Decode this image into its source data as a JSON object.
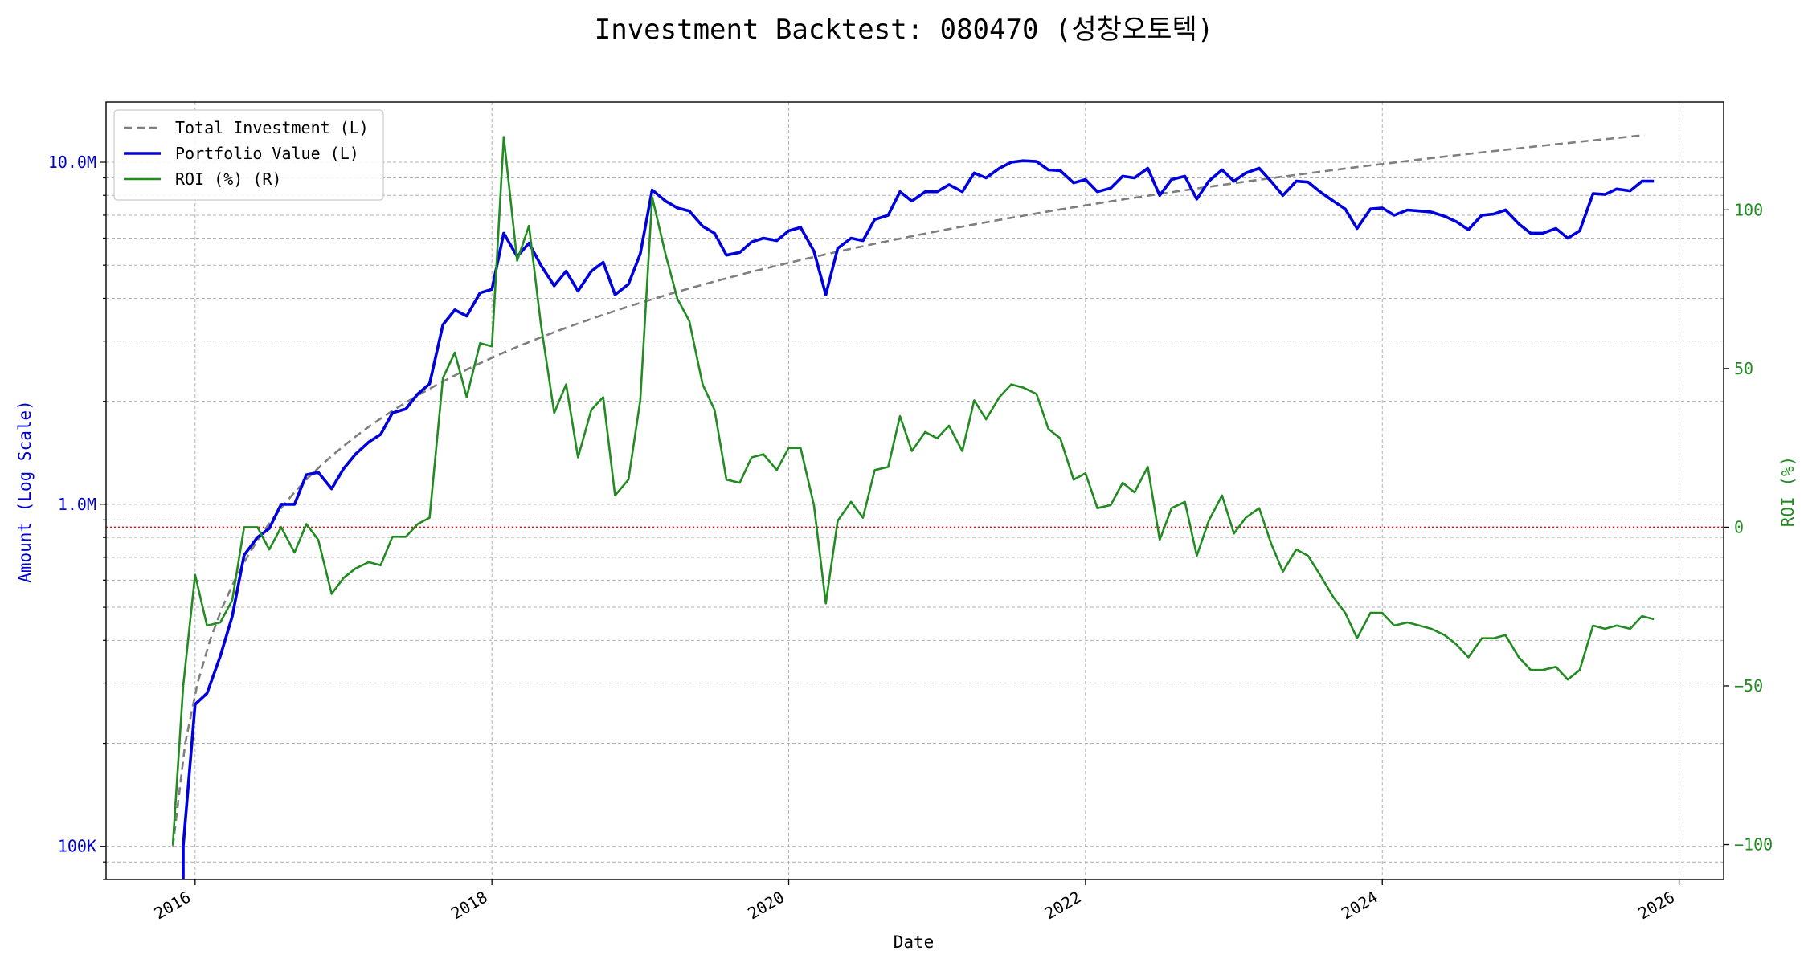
{
  "chart_data": {
    "type": "line",
    "title": "Investment Backtest: 080470 (성창오토텍)",
    "xlabel": "Date",
    "ylabel_left": "Amount (Log Scale)",
    "ylabel_right": "ROI (%)",
    "left_axis": {
      "scale": "log",
      "ylim": [
        80000,
        15000000
      ],
      "ticks": [
        100000,
        1000000,
        10000000
      ],
      "tick_labels": [
        "100K",
        "1.0M",
        "10.0M"
      ],
      "color": "#0000cc"
    },
    "right_axis": {
      "scale": "linear",
      "ylim": [
        -111,
        134
      ],
      "ticks": [
        -100,
        -50,
        0,
        50,
        100
      ],
      "tick_labels": [
        "−100",
        "−50",
        "0",
        "50",
        "100"
      ],
      "color": "#228b22"
    },
    "x_axis": {
      "xlim": [
        2015.4,
        2026.3
      ],
      "ticks": [
        2016,
        2018,
        2020,
        2022,
        2024,
        2026
      ],
      "tick_labels": [
        "2016",
        "2018",
        "2020",
        "2022",
        "2024",
        "2026"
      ]
    },
    "grid": true,
    "legend_position": "top-left",
    "reference_line": {
      "axis": "right",
      "value": 0,
      "color": "#ff0000",
      "style": "dotted"
    },
    "series": [
      {
        "name": "Total Investment (L)",
        "axis": "left",
        "color": "#7f7f7f",
        "style": "dashed",
        "monthly": {
          "start": 2015.85,
          "step": 0.083333,
          "base": 0,
          "increment": 100000,
          "count": 120
        }
      },
      {
        "name": "Portfolio Value (L)",
        "axis": "left",
        "color": "#0000dd",
        "style": "solid",
        "points": [
          [
            2015.92,
            40000
          ],
          [
            2015.92,
            100000
          ],
          [
            2016.0,
            260000
          ],
          [
            2016.08,
            280000
          ],
          [
            2016.17,
            360000
          ],
          [
            2016.25,
            470000
          ],
          [
            2016.33,
            710000
          ],
          [
            2016.42,
            800000
          ],
          [
            2016.5,
            850000
          ],
          [
            2016.58,
            1000000
          ],
          [
            2016.67,
            1000000
          ],
          [
            2016.75,
            1220000
          ],
          [
            2016.83,
            1240000
          ],
          [
            2016.92,
            1110000
          ],
          [
            2017.0,
            1270000
          ],
          [
            2017.08,
            1400000
          ],
          [
            2017.17,
            1520000
          ],
          [
            2017.25,
            1600000
          ],
          [
            2017.33,
            1850000
          ],
          [
            2017.42,
            1900000
          ],
          [
            2017.5,
            2100000
          ],
          [
            2017.58,
            2250000
          ],
          [
            2017.67,
            3350000
          ],
          [
            2017.75,
            3700000
          ],
          [
            2017.83,
            3550000
          ],
          [
            2017.92,
            4150000
          ],
          [
            2018.0,
            4250000
          ],
          [
            2018.08,
            6200000
          ],
          [
            2018.17,
            5300000
          ],
          [
            2018.25,
            5800000
          ],
          [
            2018.33,
            5000000
          ],
          [
            2018.42,
            4350000
          ],
          [
            2018.5,
            4800000
          ],
          [
            2018.58,
            4200000
          ],
          [
            2018.67,
            4800000
          ],
          [
            2018.75,
            5100000
          ],
          [
            2018.83,
            4100000
          ],
          [
            2018.92,
            4400000
          ],
          [
            2019.0,
            5400000
          ],
          [
            2019.08,
            8300000
          ],
          [
            2019.17,
            7700000
          ],
          [
            2019.25,
            7350000
          ],
          [
            2019.33,
            7200000
          ],
          [
            2019.42,
            6500000
          ],
          [
            2019.5,
            6200000
          ],
          [
            2019.58,
            5350000
          ],
          [
            2019.67,
            5450000
          ],
          [
            2019.75,
            5850000
          ],
          [
            2019.83,
            6000000
          ],
          [
            2019.92,
            5900000
          ],
          [
            2020.0,
            6300000
          ],
          [
            2020.08,
            6450000
          ],
          [
            2020.17,
            5500000
          ],
          [
            2020.25,
            4100000
          ],
          [
            2020.33,
            5600000
          ],
          [
            2020.42,
            6000000
          ],
          [
            2020.5,
            5900000
          ],
          [
            2020.58,
            6800000
          ],
          [
            2020.67,
            7000000
          ],
          [
            2020.75,
            8200000
          ],
          [
            2020.83,
            7700000
          ],
          [
            2020.92,
            8200000
          ],
          [
            2021.0,
            8200000
          ],
          [
            2021.08,
            8600000
          ],
          [
            2021.17,
            8200000
          ],
          [
            2021.25,
            9300000
          ],
          [
            2021.33,
            9000000
          ],
          [
            2021.42,
            9600000
          ],
          [
            2021.5,
            10000000
          ],
          [
            2021.58,
            10100000
          ],
          [
            2021.67,
            10050000
          ],
          [
            2021.75,
            9500000
          ],
          [
            2021.83,
            9450000
          ],
          [
            2021.92,
            8700000
          ],
          [
            2022.0,
            8900000
          ],
          [
            2022.08,
            8200000
          ],
          [
            2022.17,
            8400000
          ],
          [
            2022.25,
            9100000
          ],
          [
            2022.33,
            9000000
          ],
          [
            2022.42,
            9600000
          ],
          [
            2022.5,
            8000000
          ],
          [
            2022.58,
            8900000
          ],
          [
            2022.67,
            9100000
          ],
          [
            2022.75,
            7800000
          ],
          [
            2022.83,
            8800000
          ],
          [
            2022.92,
            9500000
          ],
          [
            2023.0,
            8800000
          ],
          [
            2023.08,
            9300000
          ],
          [
            2023.17,
            9600000
          ],
          [
            2023.25,
            8800000
          ],
          [
            2023.33,
            8000000
          ],
          [
            2023.42,
            8800000
          ],
          [
            2023.5,
            8750000
          ],
          [
            2023.58,
            8200000
          ],
          [
            2023.67,
            7700000
          ],
          [
            2023.75,
            7300000
          ],
          [
            2023.83,
            6400000
          ],
          [
            2023.92,
            7300000
          ],
          [
            2024.0,
            7350000
          ],
          [
            2024.08,
            7000000
          ],
          [
            2024.17,
            7250000
          ],
          [
            2024.25,
            7200000
          ],
          [
            2024.33,
            7150000
          ],
          [
            2024.42,
            6950000
          ],
          [
            2024.5,
            6700000
          ],
          [
            2024.58,
            6350000
          ],
          [
            2024.67,
            7000000
          ],
          [
            2024.75,
            7050000
          ],
          [
            2024.83,
            7250000
          ],
          [
            2024.92,
            6600000
          ],
          [
            2025.0,
            6200000
          ],
          [
            2025.08,
            6200000
          ],
          [
            2025.17,
            6400000
          ],
          [
            2025.25,
            6000000
          ],
          [
            2025.33,
            6300000
          ],
          [
            2025.42,
            8100000
          ],
          [
            2025.5,
            8050000
          ],
          [
            2025.58,
            8350000
          ],
          [
            2025.67,
            8250000
          ],
          [
            2025.75,
            8800000
          ],
          [
            2025.83,
            8800000
          ]
        ]
      },
      {
        "name": "ROI (%) (R)",
        "axis": "right",
        "color": "#228b22",
        "style": "solid",
        "points": [
          [
            2015.85,
            -100
          ],
          [
            2015.92,
            -50
          ],
          [
            2016.0,
            -15
          ],
          [
            2016.08,
            -31
          ],
          [
            2016.17,
            -30
          ],
          [
            2016.25,
            -23
          ],
          [
            2016.33,
            0
          ],
          [
            2016.42,
            0
          ],
          [
            2016.5,
            -7
          ],
          [
            2016.58,
            0
          ],
          [
            2016.67,
            -8
          ],
          [
            2016.75,
            1
          ],
          [
            2016.83,
            -4
          ],
          [
            2016.92,
            -21
          ],
          [
            2017.0,
            -16
          ],
          [
            2017.08,
            -13
          ],
          [
            2017.17,
            -11
          ],
          [
            2017.25,
            -12
          ],
          [
            2017.33,
            -3
          ],
          [
            2017.42,
            -3
          ],
          [
            2017.5,
            1
          ],
          [
            2017.58,
            3
          ],
          [
            2017.67,
            47
          ],
          [
            2017.75,
            55
          ],
          [
            2017.83,
            41
          ],
          [
            2017.92,
            58
          ],
          [
            2018.0,
            57
          ],
          [
            2018.08,
            123
          ],
          [
            2018.17,
            84
          ],
          [
            2018.25,
            95
          ],
          [
            2018.33,
            64
          ],
          [
            2018.42,
            36
          ],
          [
            2018.5,
            45
          ],
          [
            2018.58,
            22
          ],
          [
            2018.67,
            37
          ],
          [
            2018.75,
            41
          ],
          [
            2018.83,
            10
          ],
          [
            2018.92,
            15
          ],
          [
            2019.0,
            40
          ],
          [
            2019.08,
            104
          ],
          [
            2019.17,
            86
          ],
          [
            2019.25,
            72
          ],
          [
            2019.33,
            65
          ],
          [
            2019.42,
            45
          ],
          [
            2019.5,
            37
          ],
          [
            2019.58,
            15
          ],
          [
            2019.67,
            14
          ],
          [
            2019.75,
            22
          ],
          [
            2019.83,
            23
          ],
          [
            2019.92,
            18
          ],
          [
            2020.0,
            25
          ],
          [
            2020.08,
            25
          ],
          [
            2020.17,
            7
          ],
          [
            2020.25,
            -24
          ],
          [
            2020.33,
            2
          ],
          [
            2020.42,
            8
          ],
          [
            2020.5,
            3
          ],
          [
            2020.58,
            18
          ],
          [
            2020.67,
            19
          ],
          [
            2020.75,
            35
          ],
          [
            2020.83,
            24
          ],
          [
            2020.92,
            30
          ],
          [
            2021.0,
            28
          ],
          [
            2021.08,
            32
          ],
          [
            2021.17,
            24
          ],
          [
            2021.25,
            40
          ],
          [
            2021.33,
            34
          ],
          [
            2021.42,
            41
          ],
          [
            2021.5,
            45
          ],
          [
            2021.58,
            44
          ],
          [
            2021.67,
            42
          ],
          [
            2021.75,
            31
          ],
          [
            2021.83,
            28
          ],
          [
            2021.92,
            15
          ],
          [
            2022.0,
            17
          ],
          [
            2022.08,
            6
          ],
          [
            2022.17,
            7
          ],
          [
            2022.25,
            14
          ],
          [
            2022.33,
            11
          ],
          [
            2022.42,
            19
          ],
          [
            2022.5,
            -4
          ],
          [
            2022.58,
            6
          ],
          [
            2022.67,
            8
          ],
          [
            2022.75,
            -9
          ],
          [
            2022.83,
            2
          ],
          [
            2022.92,
            10
          ],
          [
            2023.0,
            -2
          ],
          [
            2023.08,
            3
          ],
          [
            2023.17,
            6
          ],
          [
            2023.25,
            -5
          ],
          [
            2023.33,
            -14
          ],
          [
            2023.42,
            -7
          ],
          [
            2023.5,
            -9
          ],
          [
            2023.58,
            -15
          ],
          [
            2023.67,
            -22
          ],
          [
            2023.75,
            -27
          ],
          [
            2023.83,
            -35
          ],
          [
            2023.92,
            -27
          ],
          [
            2024.0,
            -27
          ],
          [
            2024.08,
            -31
          ],
          [
            2024.17,
            -30
          ],
          [
            2024.25,
            -31
          ],
          [
            2024.33,
            -32
          ],
          [
            2024.42,
            -34
          ],
          [
            2024.5,
            -37
          ],
          [
            2024.58,
            -41
          ],
          [
            2024.67,
            -35
          ],
          [
            2024.75,
            -35
          ],
          [
            2024.83,
            -34
          ],
          [
            2024.92,
            -41
          ],
          [
            2025.0,
            -45
          ],
          [
            2025.08,
            -45
          ],
          [
            2025.17,
            -44
          ],
          [
            2025.25,
            -48
          ],
          [
            2025.33,
            -45
          ],
          [
            2025.42,
            -31
          ],
          [
            2025.5,
            -32
          ],
          [
            2025.58,
            -31
          ],
          [
            2025.67,
            -32
          ],
          [
            2025.75,
            -28
          ],
          [
            2025.83,
            -29
          ]
        ]
      }
    ]
  }
}
